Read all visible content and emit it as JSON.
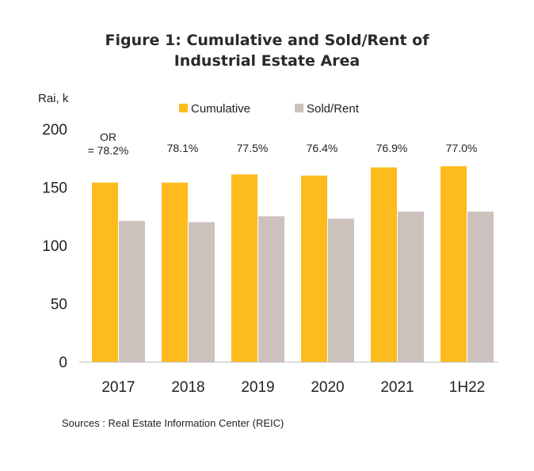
{
  "title_line1": "Figure 1: Cumulative and Sold/Rent of",
  "title_line2": "Industrial Estate Area",
  "source": "Sources : Real Estate Information Center (REIC)",
  "chart_data": {
    "type": "bar",
    "title": "Figure 1: Cumulative and Sold/Rent of Industrial Estate Area",
    "ylabel": "Rai, k",
    "xlabel": "",
    "ylim": [
      0,
      200
    ],
    "yticks": [
      0,
      50,
      100,
      150,
      200
    ],
    "grid": false,
    "legend_position": "top",
    "categories": [
      "2017",
      "2018",
      "2019",
      "2020",
      "2021",
      "1H22"
    ],
    "series": [
      {
        "name": "Cumulative",
        "color": "#FDBB1E",
        "values": [
          154,
          154,
          161,
          160,
          167,
          168
        ]
      },
      {
        "name": "Sold/Rent",
        "color": "#CDC1BE",
        "values": [
          121,
          120,
          125,
          123,
          129,
          129
        ]
      }
    ],
    "annotations": [
      "OR\n= 78.2%",
      "78.1%",
      "77.5%",
      "76.4%",
      "76.9%",
      "77.0%"
    ]
  }
}
